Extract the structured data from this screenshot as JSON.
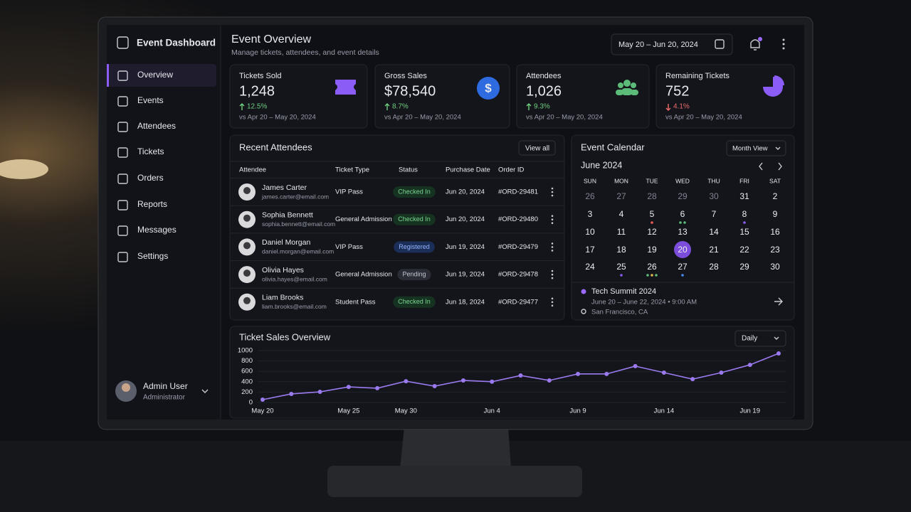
{
  "sidebar": {
    "brand": "Event Dashboard",
    "nav": [
      "Overview",
      "Events",
      "Attendees",
      "Tickets",
      "Orders",
      "Reports",
      "Messages",
      "Settings"
    ],
    "user": {
      "name": "Admin User",
      "role": "Administrator"
    }
  },
  "header": {
    "title": "Event Overview",
    "subtitle": "Manage tickets, attendees, and event details",
    "date_range": "May 20 – Jun 20, 2024"
  },
  "stats": [
    {
      "label": "Tickets Sold",
      "value": "1,248",
      "change": "12.5%",
      "trend": "up",
      "period": "vs Apr 20 – May 20, 2024"
    },
    {
      "label": "Gross Sales",
      "value": "$78,540",
      "change": "8.7%",
      "trend": "up",
      "period": "vs Apr 20 – May 20, 2024"
    },
    {
      "label": "Attendees",
      "value": "1,026",
      "change": "9.3%",
      "trend": "up",
      "period": "vs Apr 20 – May 20, 2024"
    },
    {
      "label": "Remaining Tickets",
      "value": "752",
      "change": "4.1%",
      "trend": "down",
      "period": "vs Apr 20 – May 20, 2024"
    }
  ],
  "attendees": {
    "title": "Recent Attendees",
    "action": "View all",
    "columns": [
      "Attendee",
      "Ticket Type",
      "Status",
      "Purchase Date",
      "Order ID"
    ],
    "rows": [
      {
        "name": "James Carter",
        "email": "james.carter@email.com",
        "ticket": "VIP Pass",
        "status": "Checked In",
        "date": "Jun 20, 2024",
        "order": "#ORD-29481"
      },
      {
        "name": "Sophia Bennett",
        "email": "sophia.bennett@email.com",
        "ticket": "General Admission",
        "status": "Checked In",
        "date": "Jun 20, 2024",
        "order": "#ORD-29480"
      },
      {
        "name": "Daniel Morgan",
        "email": "daniel.morgan@email.com",
        "ticket": "VIP Pass",
        "status": "Registered",
        "date": "Jun 19, 2024",
        "order": "#ORD-29479"
      },
      {
        "name": "Olivia Hayes",
        "email": "olivia.hayes@email.com",
        "ticket": "General Admission",
        "status": "Pending",
        "date": "Jun 19, 2024",
        "order": "#ORD-29478"
      },
      {
        "name": "Liam Brooks",
        "email": "liam.brooks@email.com",
        "ticket": "Student Pass",
        "status": "Checked In",
        "date": "Jun 18, 2024",
        "order": "#ORD-29477"
      }
    ]
  },
  "calendar": {
    "title": "Event Calendar",
    "view": "Month View",
    "month": "June 2024",
    "weekdays": [
      "SUN",
      "MON",
      "TUE",
      "WED",
      "THU",
      "FRI",
      "SAT"
    ],
    "weeks": [
      [
        26,
        27,
        28,
        29,
        30,
        31,
        2
      ],
      [
        3,
        4,
        5,
        6,
        7,
        8,
        9
      ],
      [
        10,
        11,
        12,
        13,
        14,
        15,
        16
      ],
      [
        17,
        18,
        19,
        20,
        21,
        22,
        23
      ],
      [
        24,
        25,
        26,
        27,
        28,
        29,
        30
      ]
    ],
    "event": {
      "name": "Tech Summit 2024",
      "time": "June 20 – June 22, 2024 • 9:00 AM",
      "location": "San Francisco, CA"
    }
  },
  "chart_data": {
    "type": "line",
    "title": "Ticket Sales Overview",
    "period": "Daily",
    "categories": [
      "May 20",
      null,
      null,
      "May 25",
      null,
      "May 30",
      null,
      null,
      "Jun 4",
      null,
      null,
      "Jun 9",
      null,
      null,
      "Jun 14",
      null,
      null,
      "Jun 19",
      null
    ],
    "series": [
      {
        "color": "#9b7af0",
        "values": [
          55,
          165,
          205,
          300,
          275,
          410,
          315,
          425,
          400,
          520,
          425,
          550,
          550,
          700,
          575,
          450,
          575,
          725,
          945
        ]
      }
    ],
    "ylim": [
      0,
      1000
    ],
    "yticks": [
      0,
      200,
      400,
      600,
      800,
      1000
    ],
    "grid": true
  }
}
